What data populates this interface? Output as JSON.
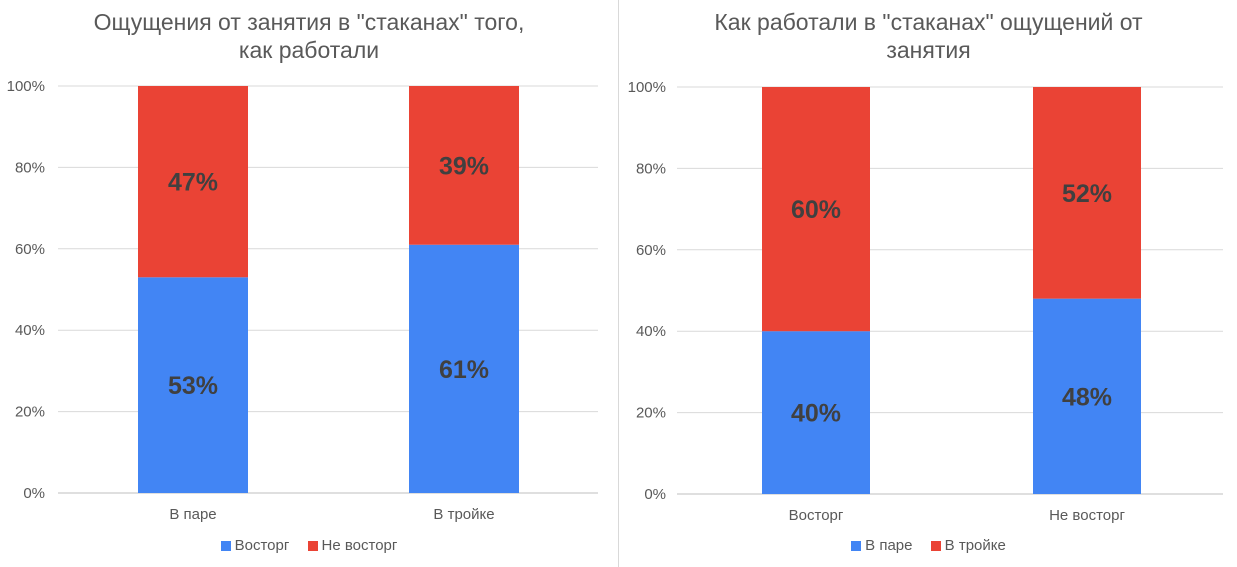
{
  "chart_data": [
    {
      "type": "bar",
      "stacked": true,
      "title": [
        "Ощущения от занятия в \"стаканах\" того,",
        "как работали"
      ],
      "categories": [
        "В паре",
        "В тройке"
      ],
      "series": [
        {
          "name": "Восторг",
          "color": "#4285F4",
          "values": [
            53,
            61
          ],
          "labels": [
            "53%",
            "61%"
          ]
        },
        {
          "name": "Не восторг",
          "color": "#EA4335",
          "values": [
            47,
            39
          ],
          "labels": [
            "47%",
            "39%"
          ]
        }
      ],
      "ylim": [
        0,
        100
      ],
      "yticks": [
        0,
        20,
        40,
        60,
        80,
        100
      ],
      "ytick_labels": [
        "0%",
        "20%",
        "40%",
        "60%",
        "80%",
        "100%"
      ],
      "grid": true,
      "legend": "bottom"
    },
    {
      "type": "bar",
      "stacked": true,
      "title": [
        "Как работали в \"стаканах\" ощущений от",
        "занятия"
      ],
      "categories": [
        "Восторг",
        "Не восторг"
      ],
      "series": [
        {
          "name": "В паре",
          "color": "#4285F4",
          "values": [
            40,
            48
          ],
          "labels": [
            "40%",
            "48%"
          ]
        },
        {
          "name": "В тройке",
          "color": "#EA4335",
          "values": [
            60,
            52
          ],
          "labels": [
            "60%",
            "52%"
          ]
        }
      ],
      "ylim": [
        0,
        100
      ],
      "yticks": [
        0,
        20,
        40,
        60,
        80,
        100
      ],
      "ytick_labels": [
        "0%",
        "20%",
        "40%",
        "60%",
        "80%",
        "100%"
      ],
      "grid": true,
      "legend": "bottom"
    }
  ]
}
